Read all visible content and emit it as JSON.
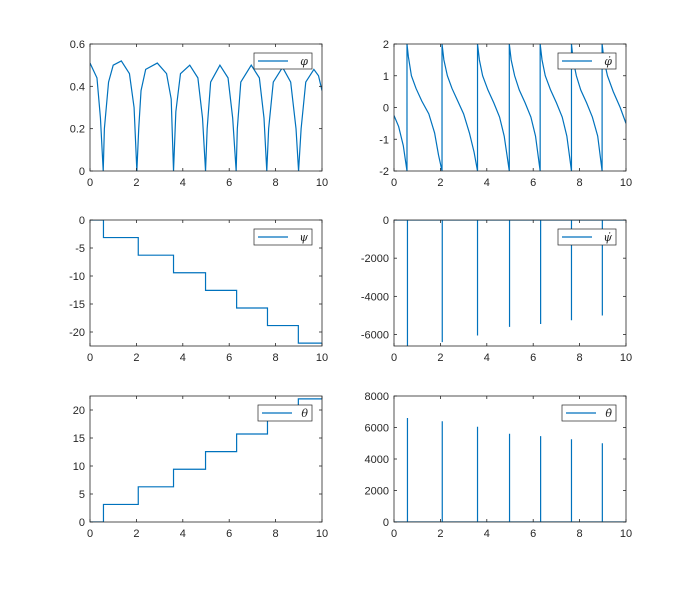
{
  "figure": {
    "background": "#ffffff",
    "line_color": "#0072bd",
    "axis_color": "#262626"
  },
  "chart_data": [
    {
      "id": "phi",
      "type": "line",
      "legend": "φ",
      "legend_position": "top-right",
      "xlim": [
        0,
        10
      ],
      "ylim": [
        0,
        0.6
      ],
      "xticks": [
        "0",
        "2",
        "4",
        "6",
        "8",
        "10"
      ],
      "yticks": [
        "0",
        "0.2",
        "0.4",
        "0.6"
      ],
      "grid": false,
      "series": [
        {
          "x": [
            0,
            0.3,
            0.45,
            0.57,
            0.62,
            0.8,
            1.0,
            1.35,
            1.7,
            1.9,
            2.02,
            2.1,
            2.2,
            2.4,
            2.9,
            3.3,
            3.5,
            3.6,
            3.7,
            3.9,
            4.3,
            4.65,
            4.85,
            4.98,
            5.05,
            5.2,
            5.6,
            5.95,
            6.15,
            6.3,
            6.35,
            6.5,
            6.95,
            7.3,
            7.5,
            7.62,
            7.7,
            7.9,
            8.3,
            8.65,
            8.88,
            8.99,
            9.1,
            9.3,
            9.65,
            9.85,
            10.0
          ],
          "y": [
            0.51,
            0.44,
            0.25,
            0.0,
            0.2,
            0.42,
            0.5,
            0.52,
            0.46,
            0.3,
            0.0,
            0.2,
            0.38,
            0.48,
            0.51,
            0.46,
            0.34,
            0.0,
            0.28,
            0.46,
            0.5,
            0.44,
            0.25,
            0.0,
            0.2,
            0.42,
            0.5,
            0.44,
            0.25,
            0.0,
            0.2,
            0.42,
            0.5,
            0.44,
            0.25,
            0.0,
            0.2,
            0.42,
            0.49,
            0.42,
            0.2,
            0.0,
            0.2,
            0.42,
            0.48,
            0.45,
            0.38
          ]
        }
      ]
    },
    {
      "id": "phi_dot",
      "type": "line",
      "legend": "φ̇",
      "legend_position": "top-right",
      "xlim": [
        0,
        10
      ],
      "ylim": [
        -2,
        2
      ],
      "xticks": [
        "0",
        "2",
        "4",
        "6",
        "8",
        "10"
      ],
      "yticks": [
        "-2",
        "-1",
        "0",
        "1",
        "2"
      ],
      "grid": false,
      "series": [
        {
          "x": [
            0,
            0.2,
            0.4,
            0.56,
            0.56,
            0.62,
            0.75,
            0.95,
            1.2,
            1.5,
            1.75,
            1.92,
            2.07,
            2.07,
            2.15,
            2.3,
            2.5,
            2.75,
            3.0,
            3.25,
            3.45,
            3.6,
            3.6,
            3.68,
            3.82,
            4.05,
            4.3,
            4.55,
            4.75,
            4.97,
            4.97,
            5.05,
            5.2,
            5.4,
            5.65,
            5.9,
            6.1,
            6.3,
            6.3,
            6.38,
            6.52,
            6.75,
            7.0,
            7.25,
            7.45,
            7.65,
            7.65,
            7.72,
            7.86,
            8.05,
            8.3,
            8.55,
            8.78,
            8.97,
            8.97,
            9.05,
            9.2,
            9.45,
            9.75,
            10.0
          ],
          "y": [
            -0.25,
            -0.6,
            -1.2,
            -2.0,
            2.0,
            1.6,
            1.0,
            0.6,
            0.2,
            -0.2,
            -0.8,
            -1.5,
            -2.0,
            2.0,
            1.5,
            1.0,
            0.6,
            0.2,
            -0.2,
            -0.8,
            -1.4,
            -2.0,
            2.0,
            1.5,
            1.0,
            0.55,
            0.15,
            -0.3,
            -0.9,
            -2.0,
            2.0,
            1.5,
            1.0,
            0.55,
            0.15,
            -0.3,
            -0.9,
            -2.0,
            2.0,
            1.5,
            1.0,
            0.55,
            0.15,
            -0.3,
            -0.9,
            -2.0,
            2.0,
            1.5,
            1.0,
            0.55,
            0.15,
            -0.3,
            -0.9,
            -2.0,
            2.0,
            1.5,
            1.0,
            0.5,
            0.0,
            -0.5
          ]
        }
      ]
    },
    {
      "id": "psi",
      "type": "line",
      "legend": "ψ",
      "legend_position": "top-right",
      "xlim": [
        0,
        10
      ],
      "ylim": [
        -22.5,
        0
      ],
      "xticks": [
        "0",
        "2",
        "4",
        "6",
        "8",
        "10"
      ],
      "yticks": [
        "-20",
        "-15",
        "-10",
        "-5",
        "0"
      ],
      "grid": false,
      "series": [
        {
          "x": [
            0,
            0.58,
            0.58,
            2.08,
            2.08,
            3.6,
            3.6,
            4.98,
            4.98,
            6.32,
            6.32,
            7.65,
            7.65,
            8.98,
            8.98,
            10.0
          ],
          "y": [
            0,
            0,
            -3.14,
            -3.14,
            -6.28,
            -6.28,
            -9.42,
            -9.42,
            -12.57,
            -12.57,
            -15.71,
            -15.71,
            -18.85,
            -18.85,
            -21.99,
            -21.99
          ]
        }
      ]
    },
    {
      "id": "psi_dot",
      "type": "line",
      "legend": "ψ̇",
      "legend_position": "top-right",
      "xlim": [
        0,
        10
      ],
      "ylim": [
        -6600,
        0
      ],
      "xticks": [
        "0",
        "2",
        "4",
        "6",
        "8",
        "10"
      ],
      "yticks": [
        "-6000",
        "-4000",
        "-2000",
        "0"
      ],
      "grid": false,
      "series": [
        {
          "x": [
            0,
            0.58,
            0.58,
            0.58,
            2.08,
            2.08,
            2.08,
            3.6,
            3.6,
            3.6,
            4.98,
            4.98,
            4.98,
            6.32,
            6.32,
            6.32,
            7.65,
            7.65,
            7.65,
            8.98,
            8.98,
            8.98,
            10.0
          ],
          "y": [
            0,
            0,
            -6600,
            0,
            0,
            -6400,
            0,
            0,
            -6050,
            0,
            0,
            -5600,
            0,
            0,
            -5450,
            0,
            0,
            -5250,
            0,
            0,
            -5000,
            0,
            0
          ]
        }
      ]
    },
    {
      "id": "theta",
      "type": "line",
      "legend": "θ",
      "legend_position": "top-right",
      "xlim": [
        0,
        10
      ],
      "ylim": [
        0,
        22.5
      ],
      "xticks": [
        "0",
        "2",
        "4",
        "6",
        "8",
        "10"
      ],
      "yticks": [
        "0",
        "5",
        "10",
        "15",
        "20"
      ],
      "grid": false,
      "series": [
        {
          "x": [
            0,
            0.58,
            0.58,
            2.08,
            2.08,
            3.6,
            3.6,
            4.98,
            4.98,
            6.32,
            6.32,
            7.65,
            7.65,
            8.98,
            8.98,
            10.0
          ],
          "y": [
            0,
            0,
            3.14,
            3.14,
            6.28,
            6.28,
            9.42,
            9.42,
            12.57,
            12.57,
            15.71,
            15.71,
            18.85,
            18.85,
            21.99,
            21.99
          ]
        }
      ]
    },
    {
      "id": "theta_dot",
      "type": "line",
      "legend": "θ̇",
      "legend_position": "top-right",
      "xlim": [
        0,
        10
      ],
      "ylim": [
        0,
        8000
      ],
      "xticks": [
        "0",
        "2",
        "4",
        "6",
        "8",
        "10"
      ],
      "yticks": [
        "0",
        "2000",
        "4000",
        "6000",
        "8000"
      ],
      "grid": false,
      "series": [
        {
          "x": [
            0,
            0.58,
            0.58,
            0.58,
            2.08,
            2.08,
            2.08,
            3.6,
            3.6,
            3.6,
            4.98,
            4.98,
            4.98,
            6.32,
            6.32,
            6.32,
            7.65,
            7.65,
            7.65,
            8.98,
            8.98,
            8.98,
            10.0
          ],
          "y": [
            0,
            0,
            6600,
            0,
            0,
            6400,
            0,
            0,
            6050,
            0,
            0,
            5600,
            0,
            0,
            5450,
            0,
            0,
            5250,
            0,
            0,
            5000,
            0,
            0
          ]
        }
      ]
    }
  ]
}
